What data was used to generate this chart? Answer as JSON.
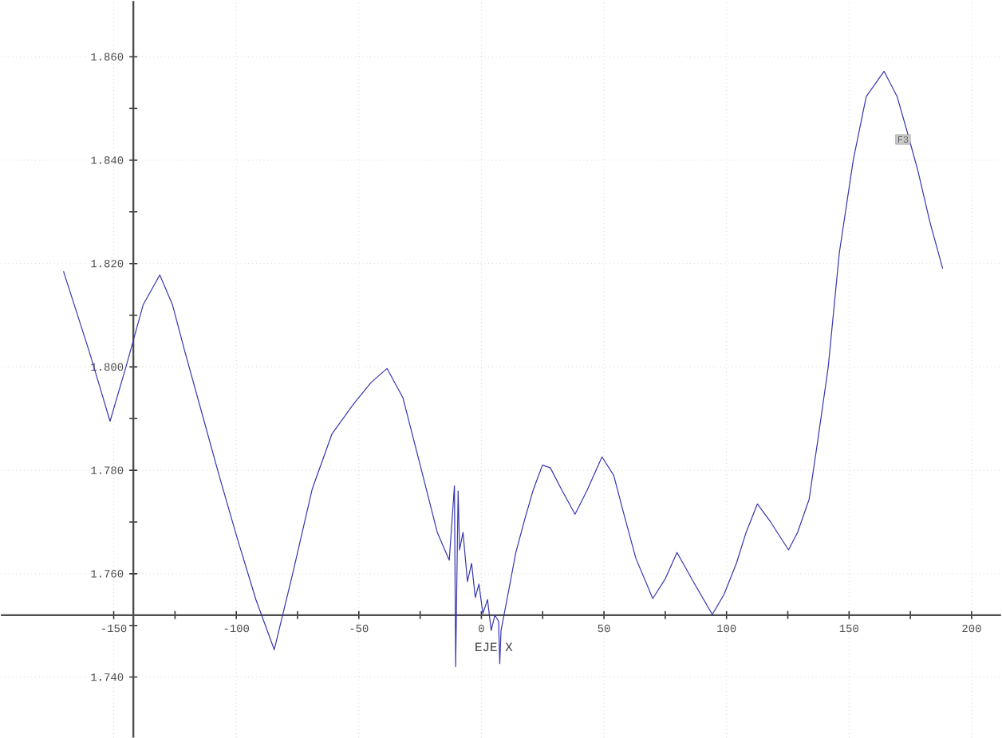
{
  "chart_data": {
    "type": "line",
    "xlabel": "EJE X",
    "x": [
      -170.5,
      -160,
      -151.5,
      -145,
      -138,
      -131.2,
      -126,
      -121,
      -113.4,
      -107,
      -99.7,
      -92,
      -84.5,
      -77,
      -69,
      -61,
      -52.2,
      -45,
      -38.5,
      -32,
      -24.7,
      -18,
      -13.1,
      -11,
      -10.5,
      -9.5,
      -8.9,
      -7.5,
      -5.7,
      -4,
      -2.5,
      -1,
      0.6,
      2.5,
      4,
      5.5,
      7,
      7.5,
      8,
      11.2,
      14,
      17.5,
      21,
      24.9,
      28.1,
      33,
      38.2,
      43,
      49.2,
      54,
      57.7,
      63,
      69.9,
      75,
      79.8,
      87,
      94.2,
      99,
      104.1,
      108,
      112.6,
      118,
      125.3,
      129,
      133.7,
      137,
      141.5,
      146,
      151.7,
      157,
      164.3,
      169.6,
      174,
      178.1,
      183,
      188.2
    ],
    "values": [
      1.8185,
      1.803,
      1.7895,
      1.8,
      1.812,
      1.8178,
      1.812,
      1.803,
      1.79,
      1.779,
      1.767,
      1.755,
      1.7453,
      1.76,
      1.7764,
      1.787,
      1.7928,
      1.797,
      1.7997,
      1.794,
      1.7805,
      1.768,
      1.7626,
      1.777,
      1.742,
      1.776,
      1.7646,
      1.768,
      1.7585,
      1.762,
      1.7554,
      1.758,
      1.7523,
      1.755,
      1.749,
      1.752,
      1.7508,
      1.7426,
      1.749,
      1.7569,
      1.764,
      1.7702,
      1.776,
      1.781,
      1.7805,
      1.776,
      1.7715,
      1.776,
      1.7826,
      1.779,
      1.7723,
      1.763,
      1.7552,
      1.759,
      1.7641,
      1.758,
      1.7521,
      1.756,
      1.7621,
      1.768,
      1.7735,
      1.77,
      1.7646,
      1.768,
      1.7744,
      1.785,
      1.8,
      1.822,
      1.84,
      1.8523,
      1.8572,
      1.8523,
      1.845,
      1.8379,
      1.828,
      1.819
    ],
    "color": "#3535b0",
    "xlim": [
      -196,
      212
    ],
    "ylim": [
      1.7283,
      1.8708
    ],
    "xticks": [
      -150,
      -100,
      -50,
      0,
      50,
      100,
      150,
      200
    ],
    "yticks": [
      {
        "value": 1.74,
        "label": "1.740"
      },
      {
        "value": 1.76,
        "label": "1.760"
      },
      {
        "value": 1.78,
        "label": "1.780"
      },
      {
        "value": 1.8,
        "label": "1.800"
      },
      {
        "value": 1.82,
        "label": "1.820"
      },
      {
        "value": 1.84,
        "label": "1.840"
      },
      {
        "value": 1.86,
        "label": "1.860"
      }
    ],
    "grid": true,
    "marker": "none",
    "line_style": "solid",
    "annotations": [
      {
        "text": "F3",
        "x": 172,
        "y": 1.844
      }
    ]
  }
}
